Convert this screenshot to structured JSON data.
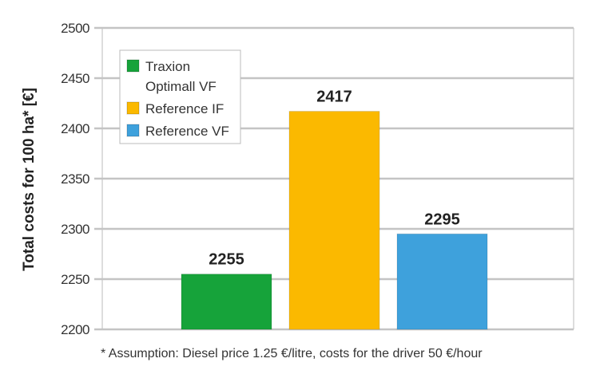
{
  "chart_data": {
    "type": "bar",
    "categories": [
      "Traxion Optimall VF",
      "Reference IF",
      "Reference VF"
    ],
    "values": [
      2255,
      2417,
      2295
    ],
    "colors": [
      "#16a33a",
      "#fbb900",
      "#3ea1dc"
    ],
    "title": "",
    "xlabel": "",
    "ylabel": "Total costs for 100 ha* [€]",
    "ylim": [
      2200,
      2500
    ],
    "yticks": [
      2200,
      2250,
      2300,
      2350,
      2400,
      2450,
      2500
    ],
    "grid": true,
    "legend": {
      "placement": "top-left",
      "entries": [
        {
          "lines": [
            "Traxion",
            "Optimall VF"
          ],
          "color": "#16a33a"
        },
        {
          "lines": [
            "Reference IF"
          ],
          "color": "#fbb900"
        },
        {
          "lines": [
            "Reference VF"
          ],
          "color": "#3ea1dc"
        }
      ]
    },
    "footnote": "* Assumption: Diesel price 1.25 €/litre, costs for the driver 50 €/hour"
  }
}
